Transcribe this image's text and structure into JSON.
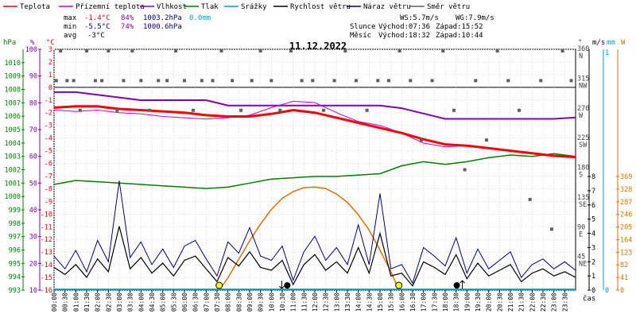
{
  "legend": [
    {
      "label": "Teplota",
      "color": "#ff0000"
    },
    {
      "label": "Přízemní teplota",
      "color": "#cc00cc"
    },
    {
      "label": "Vlhkost",
      "color": "#8000c0"
    },
    {
      "label": "Tlak",
      "color": "#008000"
    },
    {
      "label": "Srážky",
      "color": "#00a0d0"
    },
    {
      "label": "Rychlost větru",
      "color": "#000000"
    },
    {
      "label": "Náraz větru",
      "color": "#000080"
    },
    {
      "label": "Směr větru",
      "color": "#606060"
    }
  ],
  "stats": {
    "max_label": "max",
    "max_temp": "-1.4°C",
    "max_hum": "84%",
    "max_press": "1003.2hPa",
    "max_rain": "0.0mm",
    "min_label": "min",
    "min_temp": "-5.5°C",
    "min_hum": "74%",
    "min_press": "1000.6hPa",
    "avg_label": "avg",
    "avg_temp": "-3°C"
  },
  "wind": {
    "ws": "WS:5.7m/s",
    "wg": "WG:7.9m/s"
  },
  "sun": {
    "label": "Slunce",
    "rise": "Východ:07:36",
    "set": "Západ:15:52"
  },
  "moon": {
    "label": "Měsíc",
    "rise": "Východ:18:32",
    "set": "Západ:10:44"
  },
  "date": "11.12.2022",
  "axis_headers": {
    "hpa": "hPa",
    "pct": "%",
    "degc": "°C",
    "deg": "°",
    "ms": "m/s",
    "mm": "mm",
    "w": "W"
  },
  "x_axis_label": "čas",
  "colors": {
    "temp": "#ff0000",
    "ground": "#cc00cc",
    "hum": "#8000c0",
    "press": "#008000",
    "rain": "#00a0d0",
    "speed": "#000000",
    "gust": "#000080",
    "dir": "#606060",
    "solar": "#e07000",
    "hpa_axis": "#008000",
    "pct_axis": "#8000c0",
    "c_axis": "#ff0000",
    "rain_axis": "#00a0d0",
    "solar_axis": "#e07000"
  },
  "chart_data": {
    "type": "line",
    "x_ticks": [
      "00:00",
      "00:30",
      "01:00",
      "01:30",
      "02:00",
      "02:30",
      "03:00",
      "03:30",
      "04:00",
      "04:30",
      "05:00",
      "05:30",
      "06:00",
      "06:30",
      "07:00",
      "07:30",
      "08:00",
      "08:30",
      "09:00",
      "09:30",
      "10:00",
      "10:30",
      "11:00",
      "11:30",
      "12:00",
      "12:30",
      "13:00",
      "13:30",
      "14:00",
      "14:30",
      "15:00",
      "15:30",
      "16:00",
      "16:30",
      "17:00",
      "17:30",
      "18:00",
      "18:30",
      "19:00",
      "19:30",
      "20:00",
      "20:30",
      "21:00",
      "21:30",
      "22:00",
      "22:30",
      "23:00",
      "23:30"
    ],
    "x_range_hours": [
      0,
      24
    ],
    "y_axes": {
      "pressure_hpa": {
        "range": [
          993,
          1011
        ],
        "ticks": [
          "1010",
          "1009",
          "1008",
          "1007",
          "1006",
          "1005",
          "1004",
          "1003",
          "1002",
          "1001",
          "1000",
          "999",
          "998",
          "997",
          "996",
          "995",
          "994",
          "993"
        ]
      },
      "humidity_pct": {
        "range": [
          10,
          100
        ],
        "ticks": [
          "100",
          "90",
          "80",
          "70",
          "60",
          "50",
          "40",
          "30",
          "20",
          "10"
        ]
      },
      "temperature_c": {
        "range": [
          -16,
          3
        ],
        "ticks": [
          "3",
          "2",
          "1",
          "0",
          "-1",
          "-2",
          "-3",
          "-4",
          "-5",
          "-6",
          "-7",
          "-8",
          "-9",
          "-10",
          "-11",
          "-12",
          "-13",
          "-14",
          "-15",
          "-16"
        ]
      },
      "wind_dir_deg": {
        "ticks": [
          {
            "deg": "360",
            "dir": "N",
            "value": 360
          },
          {
            "deg": "315",
            "dir": "NW",
            "value": 315
          },
          {
            "deg": "270",
            "dir": "W",
            "value": 270
          },
          {
            "deg": "225",
            "dir": "SW",
            "value": 225
          },
          {
            "deg": "180",
            "dir": "S",
            "value": 180
          },
          {
            "deg": "135",
            "dir": "SE",
            "value": 135
          },
          {
            "deg": "90",
            "dir": "E",
            "value": 90
          },
          {
            "deg": "45",
            "dir": "NE",
            "value": 45
          }
        ]
      },
      "wind_speed_ms": {
        "range": [
          0,
          8
        ],
        "ticks": [
          "8",
          "7",
          "6",
          "5",
          "4",
          "3",
          "2",
          "1",
          "0"
        ]
      },
      "rain_mm": {
        "range": [
          0,
          1
        ],
        "ticks": [
          "1",
          "0"
        ]
      },
      "solar_w": {
        "range": [
          0,
          369
        ],
        "ticks": [
          "369",
          "328",
          "287",
          "246",
          "205",
          "164",
          "123",
          "82",
          "41",
          "0"
        ]
      }
    },
    "series": [
      {
        "name": "Teplota",
        "unit": "°C",
        "color": "#ff0000",
        "x": [
          0,
          1,
          2,
          3,
          4,
          5,
          6,
          7,
          8,
          9,
          10,
          11,
          12,
          13,
          14,
          15,
          16,
          17,
          18,
          19,
          20,
          21,
          22,
          23,
          24
        ],
        "y": [
          -1.6,
          -1.5,
          -1.5,
          -1.7,
          -1.8,
          -1.9,
          -2.0,
          -2.2,
          -2.3,
          -2.3,
          -2.1,
          -1.8,
          -2.0,
          -2.4,
          -2.8,
          -3.2,
          -3.6,
          -4.1,
          -4.5,
          -4.6,
          -4.8,
          -5.0,
          -5.2,
          -5.4,
          -5.5
        ]
      },
      {
        "name": "Přízemní teplota",
        "unit": "°C",
        "color": "#cc00cc",
        "x": [
          0,
          1,
          2,
          3,
          4,
          5,
          6,
          7,
          8,
          9,
          10,
          11,
          12,
          13,
          14,
          15,
          16,
          17,
          18,
          19,
          20,
          21,
          22,
          23,
          24
        ],
        "y": [
          -1.8,
          -1.9,
          -1.8,
          -2.0,
          -2.1,
          -2.3,
          -2.4,
          -2.5,
          -2.4,
          -2.2,
          -1.6,
          -1.1,
          -1.2,
          -2.0,
          -2.7,
          -3.0,
          -3.6,
          -4.4,
          -4.7,
          -4.6,
          -4.8,
          -5.0,
          -5.2,
          -5.4,
          -5.5
        ]
      },
      {
        "name": "Vlhkost",
        "unit": "%",
        "color": "#8000c0",
        "x": [
          0,
          1,
          2,
          3,
          4,
          5,
          6,
          7,
          8,
          9,
          10,
          11,
          12,
          13,
          14,
          15,
          16,
          17,
          18,
          19,
          20,
          21,
          22,
          23,
          24
        ],
        "y": [
          84,
          84,
          83,
          82,
          81,
          81,
          81,
          81,
          79,
          79,
          79,
          79,
          79,
          79,
          79,
          79,
          78,
          76,
          74,
          74,
          74,
          74,
          74,
          74,
          74.5
        ]
      },
      {
        "name": "Tlak",
        "unit": "hPa",
        "color": "#008000",
        "x": [
          0,
          1,
          2,
          3,
          4,
          5,
          6,
          7,
          8,
          9,
          10,
          11,
          12,
          13,
          14,
          15,
          16,
          17,
          18,
          19,
          20,
          21,
          22,
          23,
          24
        ],
        "y": [
          1000.9,
          1001.2,
          1001.1,
          1001.0,
          1000.9,
          1000.8,
          1000.7,
          1000.6,
          1000.7,
          1001.0,
          1001.3,
          1001.4,
          1001.5,
          1001.5,
          1001.6,
          1001.7,
          1002.3,
          1002.6,
          1002.4,
          1002.6,
          1002.9,
          1003.1,
          1003.0,
          1003.2,
          1003.0
        ]
      },
      {
        "name": "Srážky",
        "unit": "mm",
        "color": "#00a0d0",
        "x": [
          0,
          24
        ],
        "y": [
          0,
          0
        ]
      },
      {
        "name": "Rychlost větru",
        "unit": "m/s",
        "color": "#000000",
        "x": [
          0,
          0.5,
          1,
          1.5,
          2,
          2.5,
          3,
          3.5,
          4,
          4.5,
          5,
          5.5,
          6,
          6.5,
          7,
          7.5,
          8,
          8.5,
          9,
          9.5,
          10,
          10.5,
          11,
          11.5,
          12,
          12.5,
          13,
          13.5,
          14,
          14.5,
          15,
          15.5,
          16,
          16.5,
          17,
          17.5,
          18,
          18.5,
          19,
          19.5,
          20,
          20.5,
          21,
          21.5,
          22,
          22.5,
          23,
          23.5,
          24
        ],
        "y": [
          1.6,
          1.1,
          1.8,
          0.9,
          2.2,
          1.3,
          4.5,
          1.5,
          2.3,
          1.2,
          1.9,
          1.0,
          2.1,
          2.4,
          1.5,
          0.6,
          2.3,
          1.7,
          2.7,
          1.6,
          1.4,
          2.1,
          0.4,
          1.8,
          2.5,
          1.4,
          2.0,
          1.2,
          3.0,
          1.2,
          4.0,
          1.0,
          1.2,
          0.3,
          2.0,
          1.6,
          1.1,
          2.5,
          0.8,
          1.9,
          1.0,
          1.4,
          1.8,
          0.6,
          1.2,
          1.5,
          1.0,
          1.3,
          0.9
        ]
      },
      {
        "name": "Náraz větru",
        "unit": "m/s",
        "color": "#000080",
        "x": [
          0,
          0.5,
          1,
          1.5,
          2,
          2.5,
          3,
          3.5,
          4,
          4.5,
          5,
          5.5,
          6,
          6.5,
          7,
          7.5,
          8,
          8.5,
          9,
          9.5,
          10,
          10.5,
          11,
          11.5,
          12,
          12.5,
          13,
          13.5,
          14,
          14.5,
          15,
          15.5,
          16,
          16.5,
          17,
          17.5,
          18,
          18.5,
          19,
          19.5,
          20,
          20.5,
          21,
          21.5,
          22,
          22.5,
          23,
          23.5,
          24
        ],
        "y": [
          2.4,
          1.5,
          2.8,
          1.3,
          3.5,
          2.0,
          7.7,
          2.3,
          3.4,
          1.8,
          2.9,
          1.6,
          3.1,
          3.5,
          2.2,
          1.0,
          3.4,
          2.6,
          4.4,
          2.4,
          2.1,
          3.1,
          0.7,
          2.7,
          3.8,
          2.1,
          3.0,
          1.8,
          4.6,
          1.8,
          6.8,
          1.5,
          1.8,
          0.5,
          3.0,
          2.4,
          1.7,
          3.7,
          1.2,
          2.9,
          1.5,
          2.1,
          2.7,
          0.9,
          1.8,
          2.2,
          1.5,
          2.0,
          1.4
        ]
      },
      {
        "name": "Směr větru",
        "unit": "°",
        "color": "#606060",
        "x": [
          0.1,
          0.3,
          0.6,
          0.9,
          1.2,
          1.5,
          1.9,
          2.2,
          2.5,
          2.9,
          3.2,
          3.6,
          4.0,
          4.4,
          4.8,
          5.2,
          5.6,
          6.0,
          6.4,
          6.8,
          7.3,
          7.7,
          8.2,
          8.6,
          9.1,
          9.5,
          10.0,
          10.4,
          10.9,
          11.4,
          11.9,
          12.4,
          12.9,
          13.4,
          13.9,
          14.4,
          14.9,
          15.4,
          15.9,
          16.4,
          16.9,
          17.4,
          17.9,
          18.4,
          18.9,
          19.4,
          19.9,
          20.4,
          20.9,
          21.4,
          21.9,
          22.4,
          22.9,
          23.4,
          23.8
        ],
        "y": [
          315,
          360,
          315,
          315,
          270,
          360,
          315,
          315,
          360,
          270,
          315,
          360,
          315,
          270,
          315,
          315,
          360,
          315,
          270,
          315,
          315,
          360,
          315,
          270,
          315,
          360,
          315,
          270,
          360,
          315,
          315,
          270,
          315,
          360,
          315,
          270,
          315,
          315,
          360,
          315,
          225,
          315,
          360,
          270,
          180,
          315,
          225,
          360,
          315,
          270,
          135,
          315,
          90,
          360,
          315
        ]
      },
      {
        "name": "Sluneční záření",
        "unit": "W",
        "color": "#e07000",
        "x": [
          7.6,
          8.0,
          8.5,
          9.0,
          9.5,
          10.0,
          10.5,
          11.0,
          11.5,
          12.0,
          12.5,
          13.0,
          13.5,
          14.0,
          14.5,
          15.0,
          15.5,
          15.87
        ],
        "y": [
          0,
          40,
          100,
          160,
          215,
          262,
          298,
          320,
          333,
          335,
          330,
          312,
          285,
          245,
          195,
          130,
          60,
          0
        ]
      }
    ],
    "markers": [
      {
        "name": "Východ slunce",
        "time": "07:36"
      },
      {
        "name": "Západ slunce",
        "time": "15:52"
      },
      {
        "name": "Západ měsíce",
        "time": "10:44"
      },
      {
        "name": "Východ měsíce",
        "time": "18:32"
      }
    ],
    "grid": true
  }
}
